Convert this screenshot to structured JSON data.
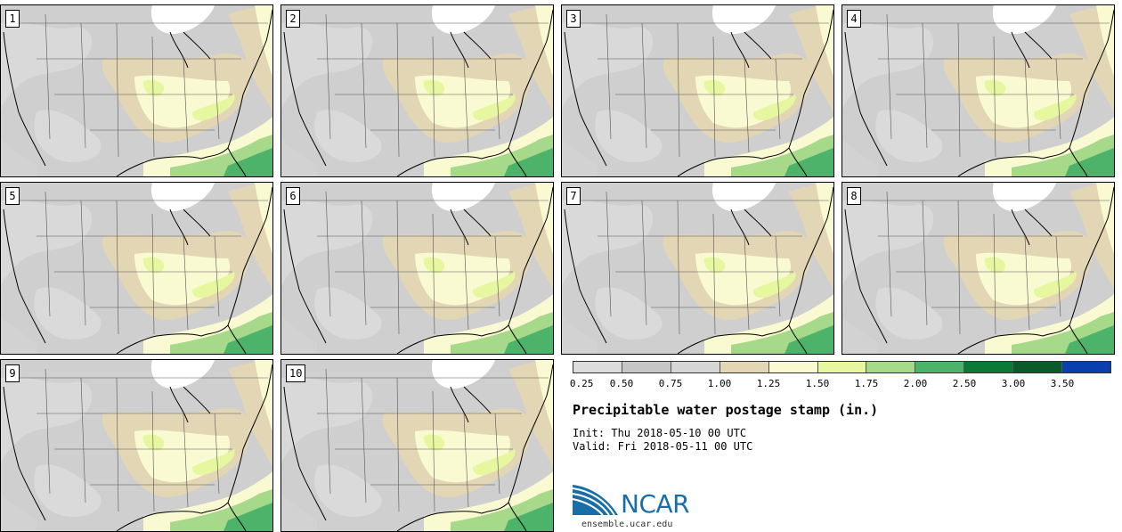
{
  "title": "Precipitable water postage stamp (in.)",
  "init": {
    "label": "Init:",
    "value": "Thu 2018-05-10 00 UTC"
  },
  "valid": {
    "label": "Valid:",
    "value": "Fri 2018-05-11 00 UTC"
  },
  "members": [
    "1",
    "2",
    "3",
    "4",
    "5",
    "6",
    "7",
    "8",
    "9",
    "10"
  ],
  "colorbar": {
    "ticks": [
      "0.25",
      "0.50",
      "0.75",
      "1.00",
      "1.25",
      "1.50",
      "1.75",
      "2.00",
      "2.50",
      "3.00",
      "3.50"
    ],
    "colors": [
      "#dcdcdc",
      "#c6c6c6",
      "#d6d6d6",
      "#e2d6b4",
      "#fafad2",
      "#e6f7a0",
      "#a6d98a",
      "#4db36a",
      "#0a7a36",
      "#0b5a2a",
      "#0a3fb0"
    ]
  },
  "logo": {
    "text": "NCAR",
    "site": "ensemble.ucar.edu"
  }
}
